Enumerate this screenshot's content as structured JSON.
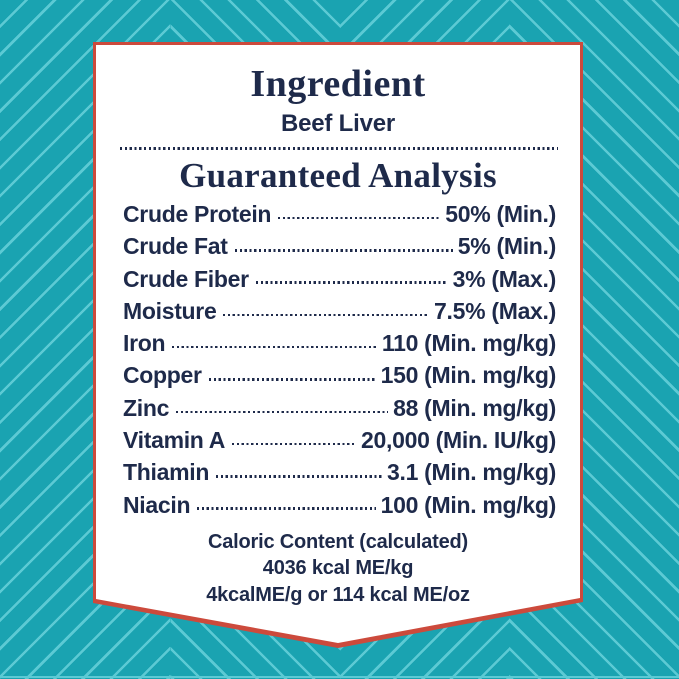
{
  "colors": {
    "background_teal": "#1aa3b1",
    "stripe_light_teal": "#5ccad4",
    "border_red": "#cc4a3c",
    "card_white": "#ffffff",
    "text_navy": "#1e2a4a"
  },
  "label": {
    "ingredient_heading": "Ingredient",
    "ingredient_value": "Beef Liver",
    "analysis_heading": "Guaranteed Analysis",
    "rows": [
      {
        "name": "Crude Protein",
        "value": "50% (Min.)"
      },
      {
        "name": "Crude Fat",
        "value": "5% (Min.)"
      },
      {
        "name": "Crude Fiber",
        "value": "3% (Max.)"
      },
      {
        "name": "Moisture",
        "value": "7.5% (Max.)"
      },
      {
        "name": "Iron",
        "value": "110 (Min. mg/kg)"
      },
      {
        "name": "Copper",
        "value": "150 (Min. mg/kg)"
      },
      {
        "name": "Zinc",
        "value": "88 (Min. mg/kg)"
      },
      {
        "name": "Vitamin A",
        "value": "20,000 (Min. IU/kg)"
      },
      {
        "name": "Thiamin",
        "value": "3.1 (Min. mg/kg)"
      },
      {
        "name": "Niacin",
        "value": "100 (Min. mg/kg)"
      }
    ],
    "caloric": {
      "line1": "Caloric Content (calculated)",
      "line2": "4036 kcal ME/kg",
      "line3": "4kcalME/g or 114 kcal ME/oz"
    }
  }
}
